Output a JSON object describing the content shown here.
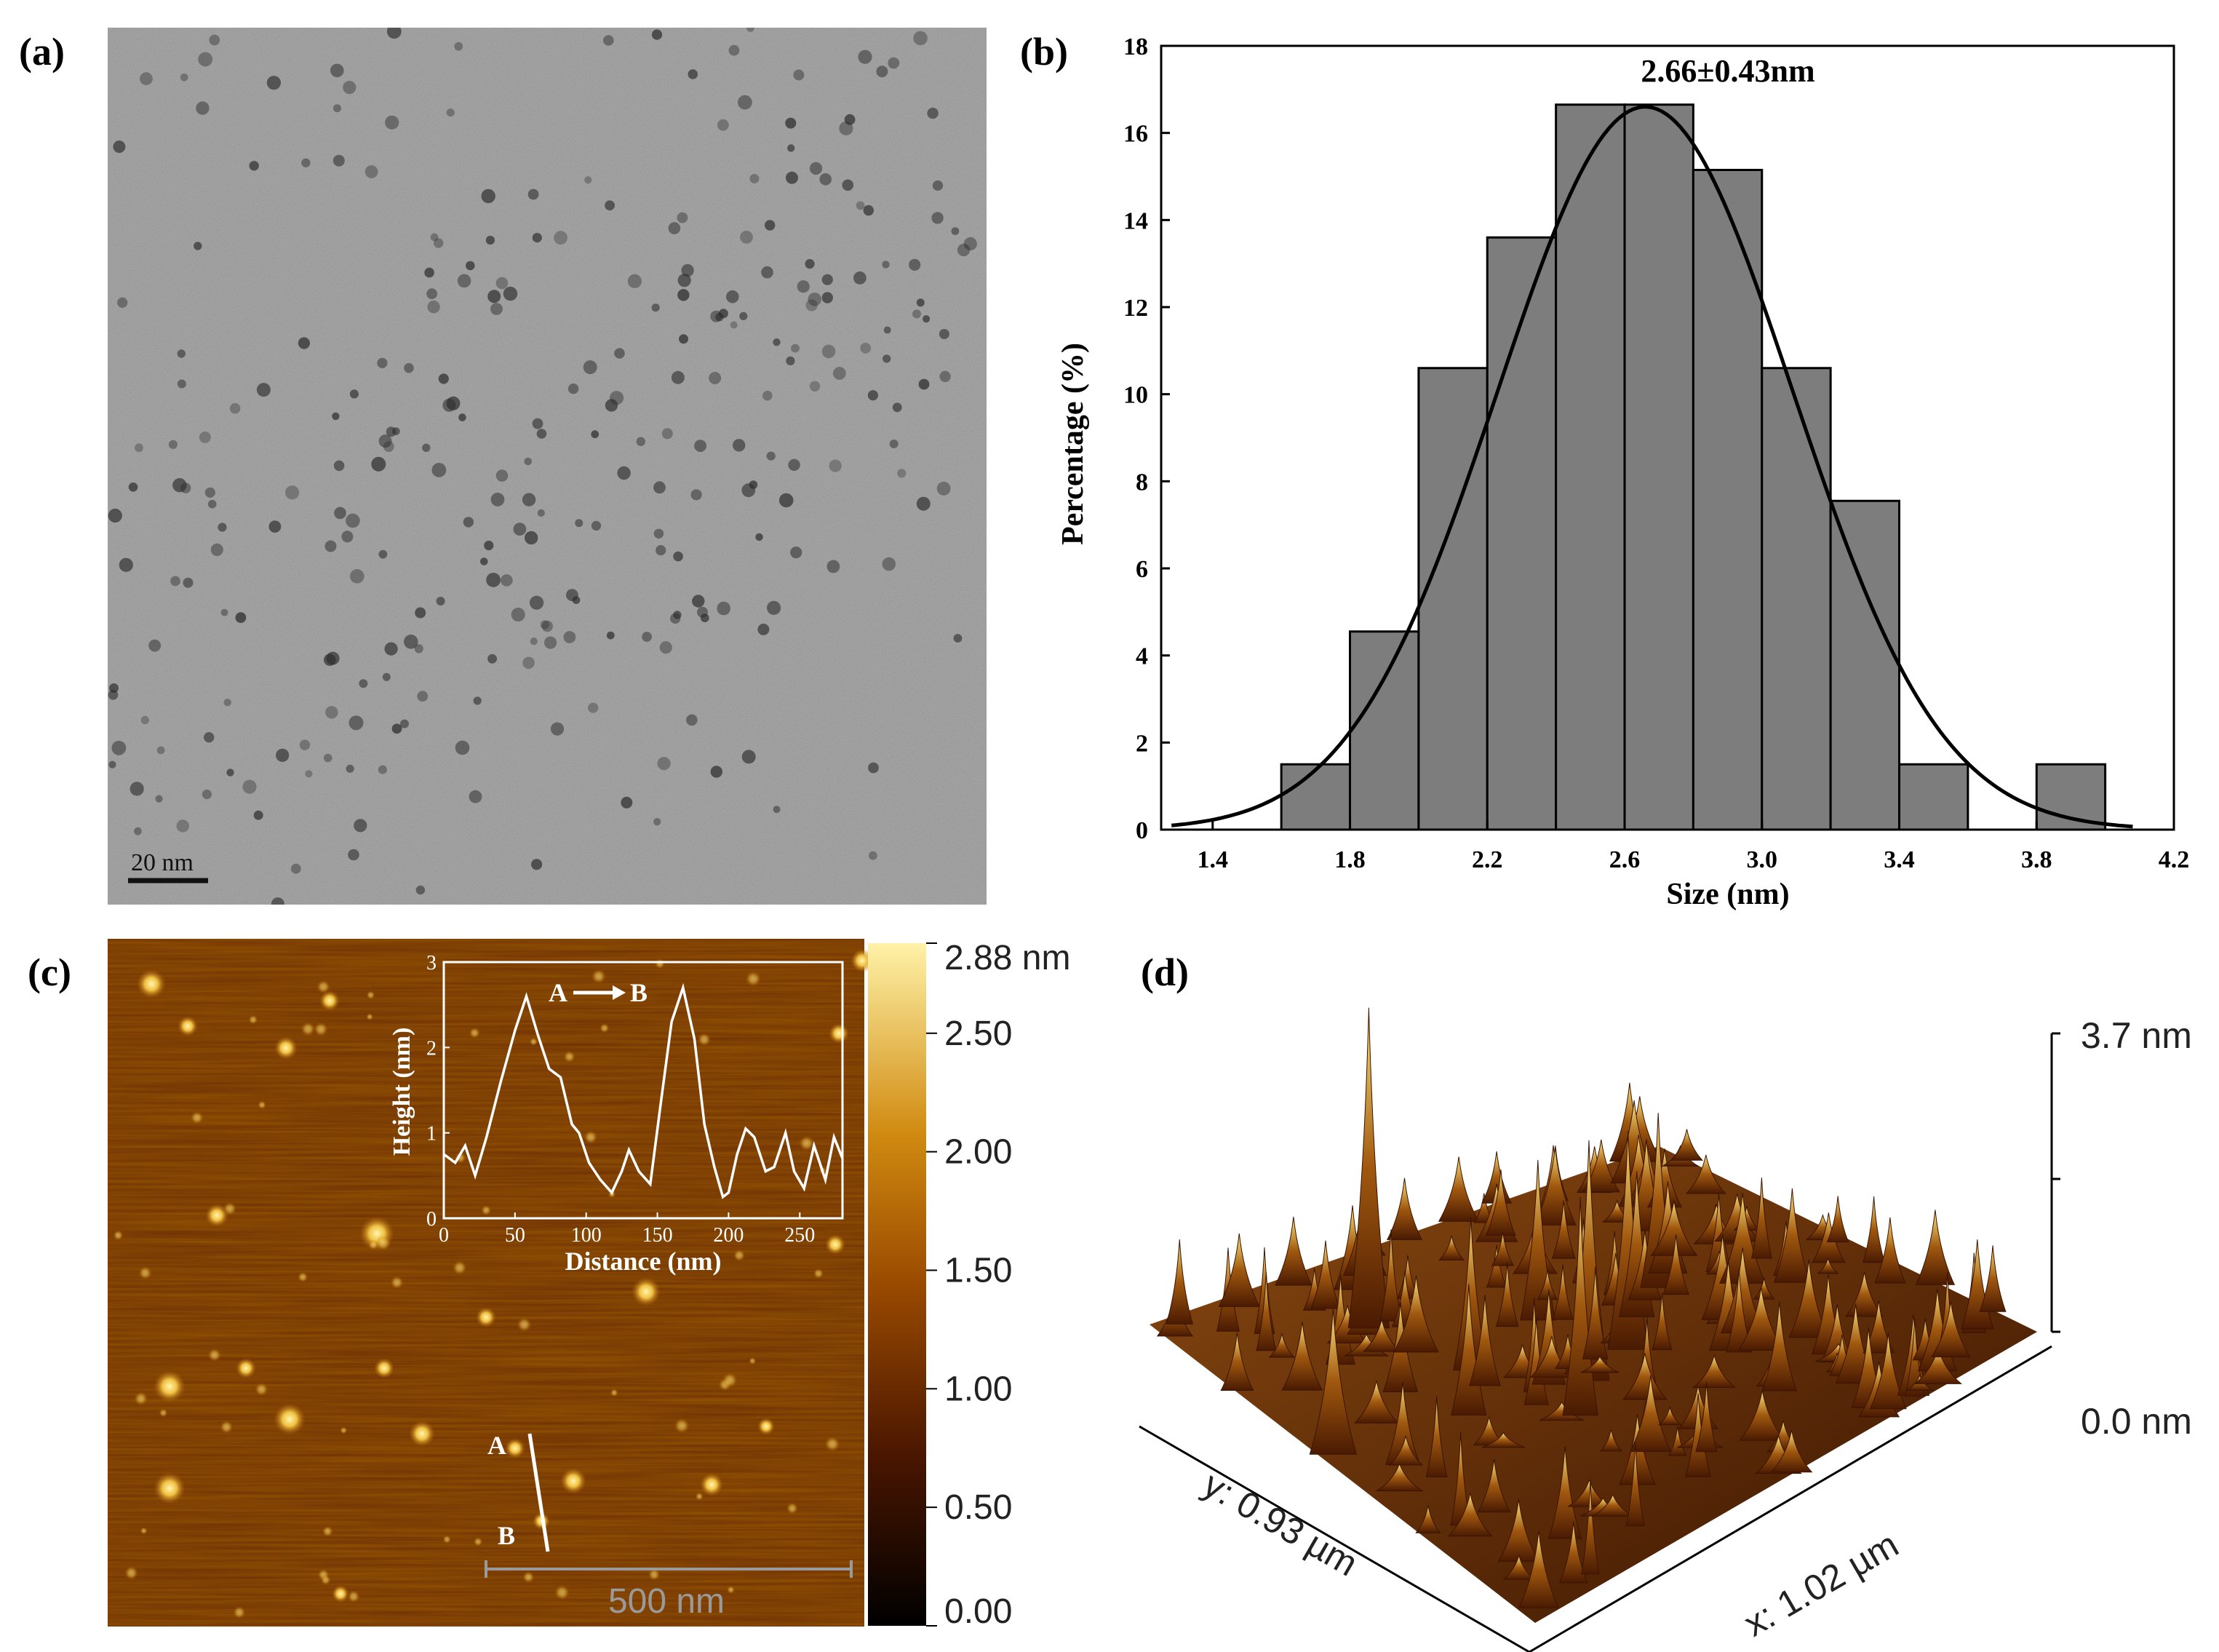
{
  "panel_labels": {
    "a": "(a)",
    "b": "(b)",
    "c": "(c)",
    "d": "(d)"
  },
  "tem": {
    "scale_bar": "20 nm"
  },
  "chart_data": [
    {
      "type": "bar",
      "panel": "b",
      "title": "",
      "xlabel": "Size (nm)",
      "ylabel": "Percentage (%)",
      "annotation": "2.66±0.43nm",
      "xlim": [
        1.25,
        4.2
      ],
      "ylim": [
        0,
        18
      ],
      "xticks": [
        "1.4",
        "1.8",
        "2.2",
        "2.6",
        "3.0",
        "3.4",
        "3.8",
        "4.2"
      ],
      "yticks": [
        "0",
        "2",
        "4",
        "6",
        "8",
        "10",
        "12",
        "14",
        "16",
        "18"
      ],
      "bin_width": 0.2,
      "bins": [
        1.6,
        1.8,
        2.0,
        2.2,
        2.4,
        2.6,
        2.8,
        3.0,
        3.2,
        3.4,
        3.6,
        3.8
      ],
      "values": [
        1.5,
        4.55,
        10.6,
        13.6,
        16.65,
        16.65,
        15.15,
        10.6,
        7.55,
        1.5,
        0,
        1.5
      ],
      "fit": {
        "type": "gaussian",
        "mean": 2.66,
        "sigma": 0.43,
        "peak": 16.6,
        "range": [
          1.28,
          4.08
        ]
      },
      "colors": {
        "bar": "#7d7d7d",
        "edge": "#000000",
        "fit": "#000000"
      }
    },
    {
      "type": "line",
      "panel": "c-inset",
      "xlabel": "Distance (nm)",
      "ylabel": "Height (nm)",
      "annotation_start": "A",
      "annotation_end": "B",
      "xlim": [
        0,
        280
      ],
      "ylim": [
        0,
        3
      ],
      "xticks": [
        "0",
        "50",
        "100",
        "150",
        "200",
        "250"
      ],
      "yticks": [
        "0",
        "1",
        "2",
        "3"
      ],
      "x": [
        0,
        8,
        15,
        22,
        30,
        40,
        50,
        58,
        66,
        74,
        82,
        90,
        95,
        102,
        110,
        118,
        125,
        130,
        137,
        145,
        152,
        160,
        168,
        176,
        183,
        190,
        196,
        200,
        206,
        212,
        218,
        226,
        232,
        240,
        246,
        253,
        260,
        268,
        274,
        280
      ],
      "values": [
        0.75,
        0.65,
        0.85,
        0.5,
        0.95,
        1.6,
        2.2,
        2.6,
        2.15,
        1.75,
        1.65,
        1.1,
        1.0,
        0.65,
        0.45,
        0.3,
        0.55,
        0.8,
        0.55,
        0.4,
        1.3,
        2.3,
        2.7,
        2.1,
        1.1,
        0.6,
        0.25,
        0.3,
        0.75,
        1.05,
        0.95,
        0.55,
        0.6,
        1.0,
        0.55,
        0.35,
        0.85,
        0.45,
        0.95,
        0.7
      ],
      "colors": {
        "line": "#ffffff",
        "axes": "#ffffff"
      }
    }
  ],
  "afm": {
    "scale_bar": "500 nm",
    "line_start": "A",
    "line_end": "B",
    "colorbar_labels": [
      "2.88 nm",
      "2.50",
      "2.00",
      "1.50",
      "1.00",
      "0.50",
      "0.00"
    ],
    "colorbar_values": [
      2.88,
      2.5,
      2.0,
      1.5,
      1.0,
      0.5,
      0.0
    ]
  },
  "afm3d": {
    "z_max": "3.7 nm",
    "z_min": "0.0 nm",
    "y_axis": "y: 0.93 µm",
    "x_axis": "x: 1.02 µm"
  }
}
